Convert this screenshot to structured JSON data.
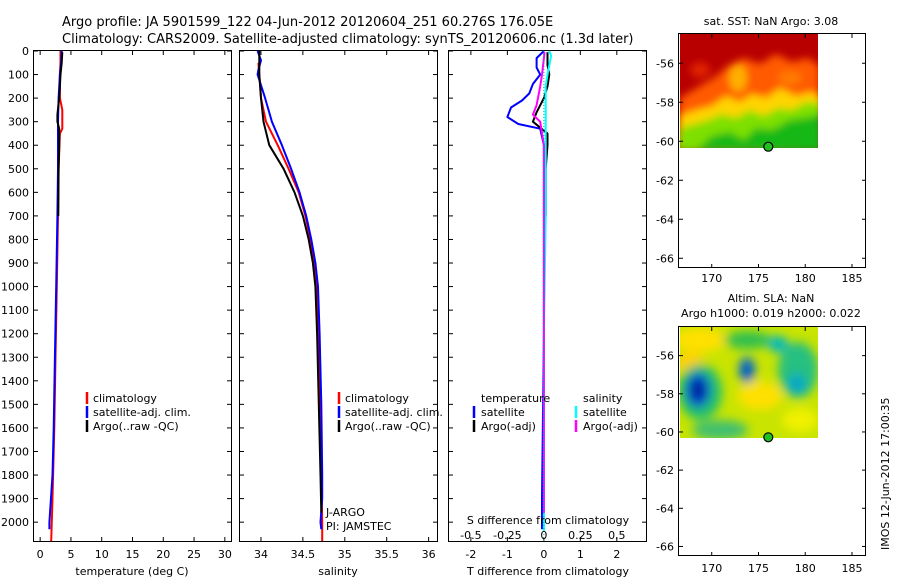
{
  "header": {
    "line1": "Argo profile: JA 5901599_122 04-Jun-2012 20120604_251 60.276S 176.05E",
    "line2": "Climatology: CARS2009. Satellite-adjusted climatology: synTS_20120606.nc (1.3d later)"
  },
  "side_stamp": "IMOS 12-Jun-2012 17:00:35",
  "colors": {
    "red": "#ff0000",
    "blue": "#0000ff",
    "black": "#000000",
    "cyan": "#00ffff",
    "magenta": "#ff00ff",
    "dotted": "#00cccc"
  },
  "chart_data": [
    {
      "id": "temperature",
      "type": "line",
      "xlabel": "temperature (deg C)",
      "xlim": [
        -1,
        31
      ],
      "xticks": [
        0,
        5,
        10,
        15,
        20,
        25,
        30
      ],
      "xticklabels": [
        "0",
        "5",
        "10",
        "15",
        "20",
        "25",
        "30"
      ],
      "ylim": [
        0,
        2080
      ],
      "yticks": [
        0,
        100,
        200,
        300,
        400,
        500,
        600,
        700,
        800,
        900,
        1000,
        1100,
        1200,
        1300,
        1400,
        1500,
        1600,
        1700,
        1800,
        1900,
        2000
      ],
      "yticklabels": [
        "0",
        "100",
        "200",
        "300",
        "400",
        "500",
        "600",
        "700",
        "800",
        "900",
        "1000",
        "1100",
        "1200",
        "1300",
        "1400",
        "1500",
        "1600",
        "1700",
        "1800",
        "1900",
        "2000"
      ],
      "series": [
        {
          "name": "climatology",
          "color": "#ff0000",
          "points": [
            [
              3.3,
              0
            ],
            [
              3.3,
              50
            ],
            [
              3.2,
              100
            ],
            [
              3.2,
              200
            ],
            [
              3.6,
              250
            ],
            [
              3.6,
              330
            ],
            [
              3.2,
              350
            ],
            [
              3.0,
              500
            ],
            [
              2.9,
              700
            ],
            [
              2.7,
              1000
            ],
            [
              2.5,
              1300
            ],
            [
              2.3,
              1600
            ],
            [
              2.0,
              1900
            ],
            [
              1.8,
              2080
            ]
          ]
        },
        {
          "name": "satellite-adj. clim.",
          "color": "#0000ff",
          "points": [
            [
              3.5,
              0
            ],
            [
              3.4,
              50
            ],
            [
              3.2,
              100
            ],
            [
              3.0,
              200
            ],
            [
              2.9,
              300
            ],
            [
              2.9,
              400
            ],
            [
              2.9,
              500
            ],
            [
              2.8,
              700
            ],
            [
              2.6,
              1000
            ],
            [
              2.4,
              1300
            ],
            [
              2.2,
              1600
            ],
            [
              2.0,
              1800
            ],
            [
              1.5,
              2000
            ],
            [
              1.5,
              2030
            ]
          ]
        },
        {
          "name": "Argo(..raw -QC)",
          "color": "#000000",
          "points": [
            [
              3.6,
              5
            ],
            [
              3.5,
              50
            ],
            [
              3.3,
              100
            ],
            [
              3.2,
              150
            ],
            [
              3.1,
              200
            ],
            [
              2.8,
              270
            ],
            [
              2.8,
              300
            ],
            [
              3.1,
              330
            ],
            [
              3.1,
              400
            ],
            [
              3.0,
              500
            ],
            [
              2.95,
              700
            ]
          ]
        }
      ],
      "legend": [
        "climatology",
        "satellite-adj. clim.",
        "Argo(..raw -QC)"
      ]
    },
    {
      "id": "salinity",
      "type": "line",
      "xlabel": "salinity",
      "xlim": [
        33.75,
        36.1
      ],
      "xticks": [
        34,
        34.5,
        35,
        35.5,
        36
      ],
      "xticklabels": [
        "34",
        "34.5",
        "35",
        "35.5",
        "36"
      ],
      "ylim": [
        0,
        2080
      ],
      "series": [
        {
          "name": "climatology",
          "color": "#ff0000",
          "points": [
            [
              33.97,
              50
            ],
            [
              33.98,
              100
            ],
            [
              34.0,
              200
            ],
            [
              34.06,
              300
            ],
            [
              34.2,
              400
            ],
            [
              34.33,
              500
            ],
            [
              34.45,
              600
            ],
            [
              34.53,
              700
            ],
            [
              34.59,
              800
            ],
            [
              34.63,
              900
            ],
            [
              34.66,
              1000
            ],
            [
              34.68,
              1200
            ],
            [
              34.7,
              1500
            ],
            [
              34.72,
              1800
            ],
            [
              34.73,
              2000
            ],
            [
              34.73,
              2080
            ]
          ]
        },
        {
          "name": "satellite-adj. clim.",
          "color": "#0000ff",
          "points": [
            [
              33.96,
              0
            ],
            [
              34.0,
              40
            ],
            [
              33.97,
              80
            ],
            [
              33.96,
              100
            ],
            [
              34.05,
              200
            ],
            [
              34.13,
              300
            ],
            [
              34.25,
              400
            ],
            [
              34.36,
              500
            ],
            [
              34.46,
              600
            ],
            [
              34.54,
              700
            ],
            [
              34.6,
              800
            ],
            [
              34.65,
              900
            ],
            [
              34.68,
              1000
            ],
            [
              34.7,
              1200
            ],
            [
              34.72,
              1500
            ],
            [
              34.73,
              1800
            ],
            [
              34.73,
              1900
            ],
            [
              34.71,
              2000
            ],
            [
              34.72,
              2030
            ]
          ]
        },
        {
          "name": "Argo(..raw -QC)",
          "color": "#000000",
          "points": [
            [
              33.98,
              0
            ],
            [
              33.98,
              100
            ],
            [
              34.0,
              200
            ],
            [
              34.03,
              300
            ],
            [
              34.1,
              400
            ],
            [
              34.27,
              500
            ],
            [
              34.4,
              600
            ],
            [
              34.5,
              700
            ],
            [
              34.57,
              800
            ],
            [
              34.62,
              900
            ],
            [
              34.65,
              1000
            ],
            [
              34.67,
              1200
            ],
            [
              34.69,
              1500
            ],
            [
              34.71,
              1800
            ],
            [
              34.72,
              1960
            ]
          ]
        }
      ],
      "legend": [
        "climatology",
        "satellite-adj. clim.",
        "Argo(..raw -QC)"
      ],
      "annotation": [
        "J-ARGO",
        "PI: JAMSTEC"
      ]
    },
    {
      "id": "difference",
      "type": "line",
      "xlabel": "T difference from climatology",
      "xlabel_top": "S difference from climatology",
      "xlim": [
        -2.6,
        2.8
      ],
      "xticks": [
        -2,
        -1,
        0,
        1,
        2
      ],
      "xticklabels": [
        "-2",
        "-1",
        "0",
        "1",
        "2"
      ],
      "xticks_s": [
        -0.5,
        -0.25,
        0,
        0.25,
        0.5
      ],
      "xticklabels_s": [
        "-0.5",
        "-0.25",
        "0",
        "0.25",
        "0.5"
      ],
      "ylim": [
        0,
        2080
      ],
      "series": [
        {
          "name": "temperature satellite",
          "color": "#0000ff",
          "points": [
            [
              0,
              0
            ],
            [
              -0.2,
              30
            ],
            [
              -0.2,
              70
            ],
            [
              -0.1,
              100
            ],
            [
              -0.3,
              140
            ],
            [
              -0.4,
              180
            ],
            [
              -0.6,
              210
            ],
            [
              -0.9,
              240
            ],
            [
              -1.0,
              280
            ],
            [
              -0.7,
              310
            ],
            [
              -0.1,
              330
            ],
            [
              0.0,
              400
            ],
            [
              0.0,
              700
            ],
            [
              0.0,
              1200
            ],
            [
              -0.05,
              1900
            ],
            [
              -0.05,
              2030
            ]
          ]
        },
        {
          "name": "temperature Argo(-adj)",
          "color": "#000000",
          "points": [
            [
              0.1,
              5
            ],
            [
              0.1,
              60
            ],
            [
              0.15,
              100
            ],
            [
              0.1,
              150
            ],
            [
              0.0,
              200
            ],
            [
              -0.2,
              260
            ],
            [
              -0.3,
              300
            ],
            [
              0.1,
              350
            ],
            [
              0.1,
              400
            ],
            [
              0.05,
              500
            ],
            [
              0.05,
              700
            ]
          ]
        },
        {
          "name": "salinity satellite",
          "color": "#00ffff",
          "points": [
            [
              0.15,
              0
            ],
            [
              0.2,
              20
            ],
            [
              0.15,
              60
            ],
            [
              0.1,
              100
            ],
            [
              0.05,
              150
            ],
            [
              0.05,
              300
            ],
            [
              0.05,
              700
            ],
            [
              0.0,
              1200
            ],
            [
              0.0,
              2040
            ]
          ]
        },
        {
          "name": "salinity Argo(-adj)",
          "color": "#ff00ff",
          "points": [
            [
              0.02,
              5
            ],
            [
              -0.05,
              100
            ],
            [
              -0.1,
              150
            ],
            [
              -0.2,
              230
            ],
            [
              -0.3,
              270
            ],
            [
              -0.1,
              300
            ],
            [
              0.0,
              400
            ],
            [
              0.0,
              700
            ],
            [
              0.0,
              1200
            ],
            [
              0.0,
              1500
            ],
            [
              0.0,
              1960
            ]
          ]
        }
      ],
      "legend": {
        "temperature": "temperature",
        "salinity": "salinity",
        "t_sat": "satellite",
        "t_argo": "Argo(-adj)",
        "s_sat": "satellite",
        "s_argo": "Argo(-adj)"
      }
    },
    {
      "id": "sst_map",
      "type": "heatmap",
      "title": "sat. SST: NaN Argo: 3.08",
      "xlim": [
        166.5,
        186.5
      ],
      "ylim": [
        -66.5,
        -54.5
      ],
      "xticks": [
        170,
        175,
        180,
        185
      ],
      "yticks": [
        -56,
        -58,
        -60,
        -62,
        -64,
        -66
      ],
      "argo_position": [
        176.05,
        -60.28
      ]
    },
    {
      "id": "sla_map",
      "type": "heatmap",
      "title": "Altim. SLA: NaN",
      "subtitle": "Argo h1000: 0.019 h2000: 0.022",
      "xlim": [
        166.5,
        186.5
      ],
      "ylim": [
        -66.5,
        -54.5
      ],
      "xticks": [
        170,
        175,
        180,
        185
      ],
      "yticks": [
        -56,
        -58,
        -60,
        -62,
        -64,
        -66
      ],
      "argo_position": [
        176.05,
        -60.28
      ]
    }
  ]
}
